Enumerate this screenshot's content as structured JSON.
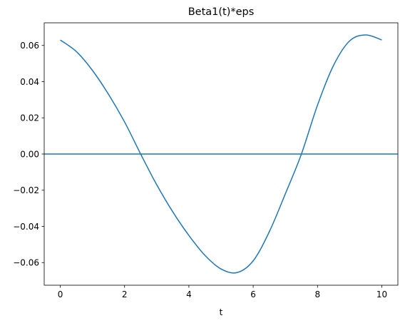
{
  "chart_data": {
    "type": "line",
    "title": "Beta1(t)*eps",
    "xlabel": "t",
    "ylabel": "",
    "xlim": [
      -0.5,
      10.5
    ],
    "ylim": [
      -0.0725,
      0.0725
    ],
    "xticks": [
      0,
      2,
      4,
      6,
      8,
      10
    ],
    "xtick_labels": [
      "0",
      "2",
      "4",
      "6",
      "8",
      "10"
    ],
    "yticks": [
      0.06,
      0.04,
      0.02,
      0.0,
      -0.02,
      -0.04,
      -0.06
    ],
    "ytick_labels": [
      "0.06",
      "0.04",
      "0.02",
      "0.00",
      "−0.02",
      "−0.04",
      "−0.06"
    ],
    "grid": false,
    "legend": "none",
    "color": "#1f77b4",
    "series": [
      {
        "x": [
          0,
          0.5,
          1,
          1.5,
          2,
          2.5,
          3,
          3.5,
          4,
          4.5,
          5,
          5.5,
          6,
          6.5,
          7,
          7.5,
          8,
          8.5,
          9,
          9.5,
          10
        ],
        "values": [
          0.063,
          0.0566,
          0.0462,
          0.033,
          0.0177,
          0.0,
          -0.017,
          -0.032,
          -0.045,
          -0.056,
          -0.0635,
          -0.0655,
          -0.059,
          -0.043,
          -0.022,
          0.0,
          0.027,
          0.049,
          0.0625,
          0.0658,
          0.063
        ]
      }
    ],
    "hlines": [
      0.0
    ]
  }
}
